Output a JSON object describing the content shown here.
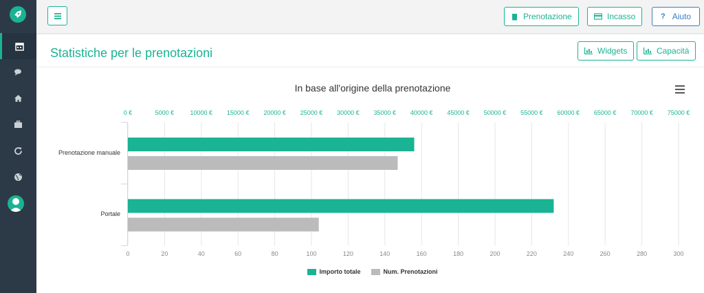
{
  "sidebar": {
    "items": [
      {
        "icon": "calendar-icon",
        "active": true
      },
      {
        "icon": "chat-icon",
        "active": false
      },
      {
        "icon": "home-icon",
        "active": false
      },
      {
        "icon": "briefcase-icon",
        "active": false
      },
      {
        "icon": "refresh-icon",
        "active": false
      },
      {
        "icon": "globe-icon",
        "active": false
      }
    ],
    "accent": "#1ab394",
    "background": "#2c3a47"
  },
  "topbar": {
    "prenotazione_label": "Prenotazione",
    "incasso_label": "Incasso",
    "aiuto_label": "Aiuto"
  },
  "page": {
    "title": "Statistiche per le prenotazioni",
    "widgets_label": "Widgets",
    "capacita_label": "Capacità"
  },
  "chart_data": {
    "type": "bar",
    "orientation": "horizontal",
    "title": "In base all'origine della prenotazione",
    "categories": [
      "Prenotazione manuale",
      "Portale"
    ],
    "series": [
      {
        "name": "Importo totale",
        "axis": "top",
        "color": "#1ab394",
        "values": [
          39000,
          58000
        ]
      },
      {
        "name": "Num. Prenotazioni",
        "axis": "bottom",
        "color": "#bbbbbb",
        "values": [
          147,
          104
        ]
      }
    ],
    "top_axis": {
      "min": 0,
      "max": 75000,
      "step": 5000,
      "tick_labels": [
        "0 €",
        "5000 €",
        "10000 €",
        "15000 €",
        "20000 €",
        "25000 €",
        "30000 €",
        "35000 €",
        "40000 €",
        "45000 €",
        "50000 €",
        "55000 €",
        "60000 €",
        "65000 €",
        "70000 €",
        "75000 €"
      ]
    },
    "bottom_axis": {
      "min": 0,
      "max": 300,
      "step": 20,
      "tick_labels": [
        "0",
        "20",
        "40",
        "60",
        "80",
        "100",
        "120",
        "140",
        "160",
        "180",
        "200",
        "220",
        "240",
        "260",
        "280",
        "300"
      ]
    },
    "grid": true,
    "legend_position": "bottom-center"
  }
}
